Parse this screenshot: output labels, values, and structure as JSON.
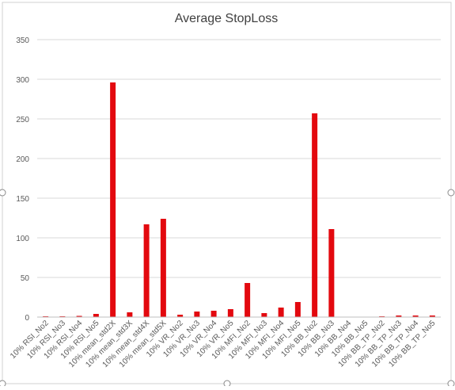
{
  "chart_data": {
    "type": "bar",
    "title": "Average StopLoss",
    "xlabel": "",
    "ylabel": "",
    "ylim": [
      0,
      350
    ],
    "yticks": [
      0,
      50,
      100,
      150,
      200,
      250,
      300,
      350
    ],
    "grid": true,
    "legend": "none",
    "bar_color": "#e3090f",
    "categories": [
      "10% RSI_No2",
      "10% RSI_No3",
      "10% RSI_No4",
      "10% RSI_No5",
      "10% mean_std2X",
      "10% mean_std3X",
      "10% mean_std4X",
      "10% mean_std5X",
      "10% VR_No2",
      "10% VR_No3",
      "10% VR_No4",
      "10% VR_No5",
      "10% MFI_No2",
      "10% MFI_No3",
      "10% MFI_No4",
      "10% MFI_No5",
      "10% BB_No2",
      "10% BB_No3",
      "10% BB_No4",
      "10% BB_No5",
      "10% BB_TP_No2",
      "10% BB_TP_No3",
      "10% BB_TP_No4",
      "10% BB_TP_No5"
    ],
    "values": [
      1,
      1,
      1.5,
      4,
      296,
      6,
      117,
      124,
      3,
      7,
      8,
      10,
      43,
      5,
      12,
      19,
      257,
      111,
      0,
      0,
      1,
      2,
      2,
      2
    ]
  }
}
